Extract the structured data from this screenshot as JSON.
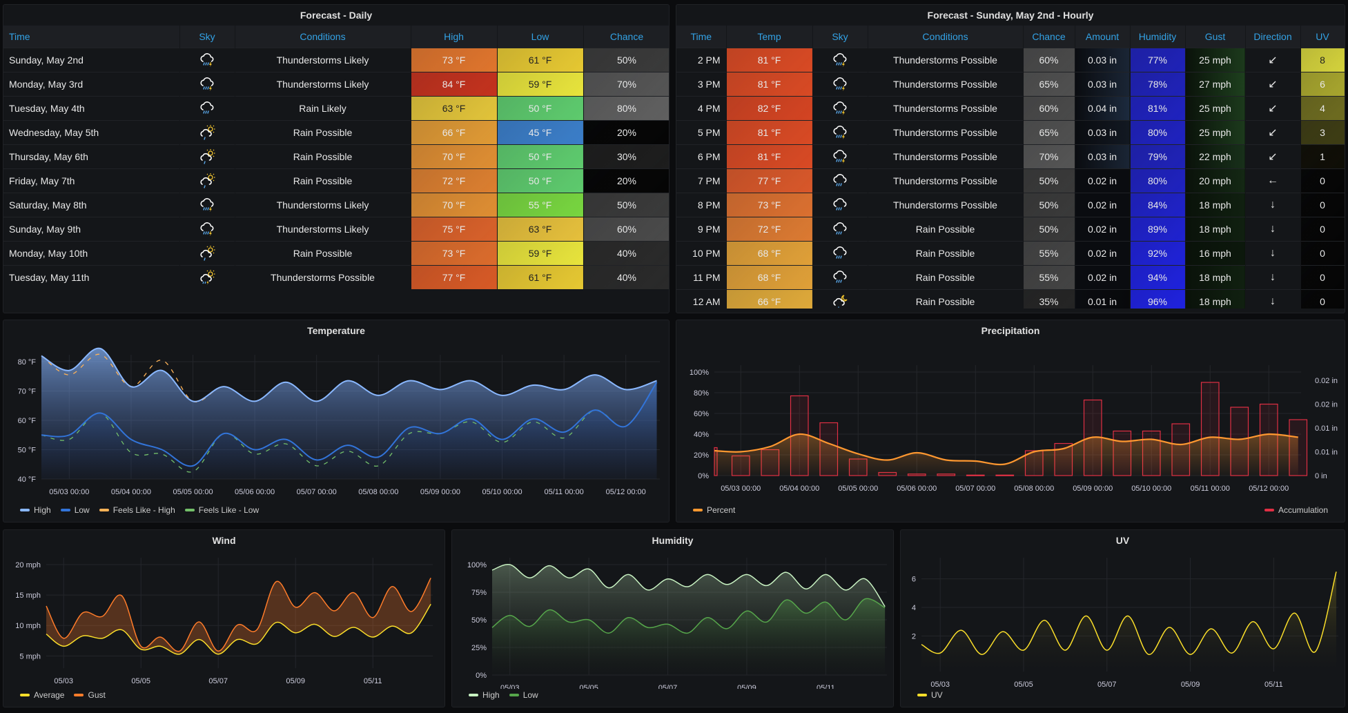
{
  "daily": {
    "title": "Forecast - Daily",
    "columns": [
      "Time",
      "Sky",
      "Conditions",
      "High",
      "Low",
      "Chance"
    ],
    "rows": [
      {
        "time": "Sunday, May 2nd",
        "sky": "thunderstorm-icon",
        "conditions": "Thunderstorms Likely",
        "high": "73 °F",
        "low": "61 °F",
        "chance": "50%",
        "high_color": "#e0752d",
        "low_color": "#e6c832",
        "chance_color": "#3a3a3a"
      },
      {
        "time": "Monday, May 3rd",
        "sky": "thunderstorm-icon",
        "conditions": "Thunderstorms Likely",
        "high": "84 °F",
        "low": "59 °F",
        "chance": "70%",
        "high_color": "#c4321e",
        "low_color": "#e8e43c",
        "chance_color": "#555555"
      },
      {
        "time": "Tuesday, May 4th",
        "sky": "rain-icon",
        "conditions": "Rain Likely",
        "high": "63 °F",
        "low": "50 °F",
        "chance": "80%",
        "high_color": "#e2c43a",
        "low_color": "#5ecb6e",
        "chance_color": "#606060"
      },
      {
        "time": "Wednesday, May 5th",
        "sky": "partly-sunny-rain-icon",
        "conditions": "Rain Possible",
        "high": "66 °F",
        "low": "45 °F",
        "chance": "20%",
        "high_color": "#e09a35",
        "low_color": "#3b7ec9",
        "chance_color": "#050505"
      },
      {
        "time": "Thursday, May 6th",
        "sky": "partly-sunny-rain-icon",
        "conditions": "Rain Possible",
        "high": "70 °F",
        "low": "50 °F",
        "chance": "30%",
        "high_color": "#df8e33",
        "low_color": "#5ecb6e",
        "chance_color": "#1d1d1d"
      },
      {
        "time": "Friday, May 7th",
        "sky": "partly-sunny-rain-icon",
        "conditions": "Rain Possible",
        "high": "72 °F",
        "low": "50 °F",
        "chance": "20%",
        "high_color": "#dc7f30",
        "low_color": "#5ecb6e",
        "chance_color": "#050505"
      },
      {
        "time": "Saturday, May 8th",
        "sky": "thunderstorm-icon",
        "conditions": "Thunderstorms Likely",
        "high": "70 °F",
        "low": "55 °F",
        "chance": "50%",
        "high_color": "#df8e33",
        "low_color": "#78d640",
        "chance_color": "#3a3a3a"
      },
      {
        "time": "Sunday, May 9th",
        "sky": "thunderstorm-icon",
        "conditions": "Thunderstorms Likely",
        "high": "75 °F",
        "low": "63 °F",
        "chance": "60%",
        "high_color": "#d9612a",
        "low_color": "#e6c03c",
        "chance_color": "#4a4a4a"
      },
      {
        "time": "Monday, May 10th",
        "sky": "partly-sunny-rain-icon",
        "conditions": "Rain Possible",
        "high": "73 °F",
        "low": "59 °F",
        "chance": "40%",
        "high_color": "#dc6c2c",
        "low_color": "#e8e43c",
        "chance_color": "#2a2a2a"
      },
      {
        "time": "Tuesday, May 11th",
        "sky": "partly-sunny-thunder-icon",
        "conditions": "Thunderstorms Possible",
        "high": "77 °F",
        "low": "61 °F",
        "chance": "40%",
        "high_color": "#d85a26",
        "low_color": "#e6c832",
        "chance_color": "#2a2a2a"
      }
    ]
  },
  "hourly": {
    "title": "Forecast - Sunday, May 2nd - Hourly",
    "columns": [
      "Time",
      "Temp",
      "Sky",
      "Conditions",
      "Chance",
      "Amount",
      "Humidity",
      "Gust",
      "Direction",
      "UV"
    ],
    "rows": [
      {
        "time": "2 PM",
        "temp": "81 °F",
        "sky": "thunderstorm-icon",
        "conditions": "Thunderstorms Possible",
        "chance": "60%",
        "amount": "0.03 in",
        "humidity": "77%",
        "gust": "25 mph",
        "direction": "↙",
        "uv": "8",
        "temp_color": "#d94a24",
        "chance_color": "#4a4a4a",
        "amount_color": "#1a2535",
        "humidity_color": "#1f22b8",
        "gust_color": "#1c3a1c",
        "uv_color": "#d4d23c"
      },
      {
        "time": "3 PM",
        "temp": "81 °F",
        "sky": "thunderstorm-icon",
        "conditions": "Thunderstorms Possible",
        "chance": "65%",
        "amount": "0.03 in",
        "humidity": "78%",
        "gust": "27 mph",
        "direction": "↙",
        "uv": "6",
        "temp_color": "#d94a24",
        "chance_color": "#505050",
        "amount_color": "#1a2535",
        "humidity_color": "#1f22b8",
        "gust_color": "#1e401e",
        "uv_color": "#a8a62e"
      },
      {
        "time": "4 PM",
        "temp": "82 °F",
        "sky": "thunderstorm-icon",
        "conditions": "Thunderstorms Possible",
        "chance": "60%",
        "amount": "0.04 in",
        "humidity": "81%",
        "gust": "25 mph",
        "direction": "↙",
        "uv": "4",
        "temp_color": "#d44422",
        "chance_color": "#4a4a4a",
        "amount_color": "#1c2a3e",
        "humidity_color": "#1f22c0",
        "gust_color": "#1c3a1c",
        "uv_color": "#6e6c20"
      },
      {
        "time": "5 PM",
        "temp": "81 °F",
        "sky": "thunderstorm-icon",
        "conditions": "Thunderstorms Possible",
        "chance": "65%",
        "amount": "0.03 in",
        "humidity": "80%",
        "gust": "25 mph",
        "direction": "↙",
        "uv": "3",
        "temp_color": "#d94a24",
        "chance_color": "#505050",
        "amount_color": "#121822",
        "humidity_color": "#1f22c0",
        "gust_color": "#1c3a1c",
        "uv_color": "#3e3d14"
      },
      {
        "time": "6 PM",
        "temp": "81 °F",
        "sky": "thunderstorm-icon",
        "conditions": "Thunderstorms Possible",
        "chance": "70%",
        "amount": "0.03 in",
        "humidity": "79%",
        "gust": "22 mph",
        "direction": "↙",
        "uv": "1",
        "temp_color": "#d94a24",
        "chance_color": "#555555",
        "amount_color": "#1a2535",
        "humidity_color": "#1f22b8",
        "gust_color": "#18301a",
        "uv_color": "#0f0e06"
      },
      {
        "time": "7 PM",
        "temp": "77 °F",
        "sky": "rain-icon",
        "conditions": "Thunderstorms Possible",
        "chance": "50%",
        "amount": "0.02 in",
        "humidity": "80%",
        "gust": "20 mph",
        "direction": "←",
        "uv": "0",
        "temp_color": "#d9582a",
        "chance_color": "#3a3a3a",
        "amount_color": "#0a0c10",
        "humidity_color": "#1f22c0",
        "gust_color": "#142814",
        "uv_color": "#050505"
      },
      {
        "time": "8 PM",
        "temp": "73 °F",
        "sky": "rain-icon",
        "conditions": "Thunderstorms Possible",
        "chance": "50%",
        "amount": "0.02 in",
        "humidity": "84%",
        "gust": "18 mph",
        "direction": "↓",
        "uv": "0",
        "temp_color": "#db7030",
        "chance_color": "#3a3a3a",
        "amount_color": "#0a0c10",
        "humidity_color": "#1f22c8",
        "gust_color": "#102010",
        "uv_color": "#050505"
      },
      {
        "time": "9 PM",
        "temp": "72 °F",
        "sky": "rain-icon",
        "conditions": "Rain Possible",
        "chance": "50%",
        "amount": "0.02 in",
        "humidity": "89%",
        "gust": "18 mph",
        "direction": "↓",
        "uv": "0",
        "temp_color": "#dc7a32",
        "chance_color": "#3a3a3a",
        "amount_color": "#0a0c10",
        "humidity_color": "#1f22d0",
        "gust_color": "#102010",
        "uv_color": "#050505"
      },
      {
        "time": "10 PM",
        "temp": "68 °F",
        "sky": "rain-icon",
        "conditions": "Rain Possible",
        "chance": "55%",
        "amount": "0.02 in",
        "humidity": "92%",
        "gust": "16 mph",
        "direction": "↓",
        "uv": "0",
        "temp_color": "#e0a038",
        "chance_color": "#444444",
        "amount_color": "#0a0c10",
        "humidity_color": "#1f22d8",
        "gust_color": "#0c180c",
        "uv_color": "#050505"
      },
      {
        "time": "11 PM",
        "temp": "68 °F",
        "sky": "rain-icon",
        "conditions": "Rain Possible",
        "chance": "55%",
        "amount": "0.02 in",
        "humidity": "94%",
        "gust": "18 mph",
        "direction": "↓",
        "uv": "0",
        "temp_color": "#e0a038",
        "chance_color": "#444444",
        "amount_color": "#0a0c10",
        "humidity_color": "#1f22dc",
        "gust_color": "#102010",
        "uv_color": "#050505"
      },
      {
        "time": "12 AM",
        "temp": "66 °F",
        "sky": "partly-cloudy-night-icon",
        "conditions": "Rain Possible",
        "chance": "35%",
        "amount": "0.01 in",
        "humidity": "96%",
        "gust": "18 mph",
        "direction": "↓",
        "uv": "0",
        "temp_color": "#e0aa3a",
        "chance_color": "#252525",
        "amount_color": "#08090b",
        "humidity_color": "#1f22e0",
        "gust_color": "#102010",
        "uv_color": "#050505"
      }
    ]
  },
  "chart_data": [
    {
      "id": "temperature",
      "type": "area",
      "title": "Temperature",
      "xlabel": "",
      "ylabel": "",
      "x_ticks": [
        "05/03 00:00",
        "05/04 00:00",
        "05/05 00:00",
        "05/06 00:00",
        "05/07 00:00",
        "05/08 00:00",
        "05/09 00:00",
        "05/10 00:00",
        "05/11 00:00",
        "05/12 00:00"
      ],
      "y_ticks": [
        "40 °F",
        "50 °F",
        "60 °F",
        "70 °F",
        "80 °F"
      ],
      "ylim": [
        40,
        80
      ],
      "xlim_days": [
        -0.45,
        9.55
      ],
      "x_days": [
        -0.45,
        0,
        0.5,
        1,
        1.5,
        2,
        2.5,
        3,
        3.5,
        4,
        4.5,
        5,
        5.5,
        6,
        6.5,
        7,
        7.5,
        8,
        8.5,
        9,
        9.5
      ],
      "series": [
        {
          "name": "High",
          "color": "#8ab8ff",
          "fill": true,
          "values": [
            82,
            77,
            84.5,
            71.5,
            77,
            66.5,
            71.5,
            66.5,
            73,
            66.5,
            73.5,
            68.5,
            73.5,
            70.5,
            73.5,
            68.5,
            72,
            70.5,
            75.5,
            70.5,
            73.5
          ]
        },
        {
          "name": "Low",
          "color": "#3274d9",
          "fill": true,
          "values": [
            55,
            55,
            62.5,
            53.5,
            50,
            44.5,
            55.5,
            50,
            53.5,
            46.5,
            51.5,
            47.5,
            57.5,
            55.5,
            60.5,
            53.5,
            60.5,
            56,
            63.5,
            58,
            73
          ]
        },
        {
          "name": "Feels Like - High",
          "color": "#ffb357",
          "dashed": true,
          "values": [
            82,
            75.5,
            82.5,
            71.5,
            80.5,
            66.5,
            71.5,
            66.5,
            73,
            66.5,
            73.5,
            68.5,
            73.5,
            70.5,
            73.5,
            68.5,
            72,
            70.5,
            75.5,
            70.5,
            73.5
          ]
        },
        {
          "name": "Feels Like - Low",
          "color": "#73bf69",
          "dashed": true,
          "values": [
            55,
            53.5,
            62.5,
            49,
            48.5,
            42.5,
            55.5,
            48.5,
            52,
            44.5,
            49.5,
            44.5,
            55.5,
            55.5,
            59.5,
            52.5,
            59.5,
            54,
            63.5,
            58,
            73
          ]
        }
      ],
      "legend": "bottom-left"
    },
    {
      "id": "precipitation",
      "type": "bar",
      "title": "Precipitation",
      "x_ticks": [
        "05/03 00:00",
        "05/04 00:00",
        "05/05 00:00",
        "05/06 00:00",
        "05/07 00:00",
        "05/08 00:00",
        "05/09 00:00",
        "05/10 00:00",
        "05/11 00:00",
        "05/12 00:00"
      ],
      "y_ticks_left": [
        "0%",
        "20%",
        "40%",
        "60%",
        "80%",
        "100%"
      ],
      "y_ticks_right": [
        "0 in",
        "0.01 in",
        "0.01 in",
        "0.02 in",
        "0.02 in"
      ],
      "ylim": [
        0,
        100
      ],
      "xlim_days": [
        -0.45,
        9.55
      ],
      "series": [
        {
          "name": "Percent",
          "type": "line",
          "color": "#ff9830",
          "axis": "left",
          "x_days": [
            -0.45,
            0,
            0.5,
            1,
            1.5,
            2,
            2.5,
            3,
            3.5,
            4,
            4.5,
            5,
            5.5,
            6,
            6.5,
            7,
            7.5,
            8,
            8.5,
            9,
            9.5
          ],
          "values": [
            24,
            23,
            28,
            40,
            31,
            21,
            15,
            22,
            15,
            14,
            11,
            23,
            26,
            37,
            33,
            35,
            30,
            37,
            35,
            40,
            37
          ]
        },
        {
          "name": "Accumulation",
          "type": "bar",
          "color": "#e02f44",
          "axis": "right",
          "x_days": [
            -0.4,
            0,
            0.5,
            1,
            1.5,
            2,
            2.5,
            3,
            3.5,
            4,
            4.5,
            5,
            5.5,
            6,
            6.5,
            7,
            7.5,
            8,
            8.5,
            9,
            9.5
          ],
          "values_pct_scale": [
            27,
            19,
            25,
            77,
            51,
            16,
            3,
            1.5,
            1.5,
            0.5,
            0.5,
            24,
            31,
            73,
            43,
            43,
            50,
            90,
            66,
            69,
            54
          ]
        }
      ],
      "legend": "bottom"
    },
    {
      "id": "wind",
      "type": "area",
      "title": "Wind",
      "x_ticks": [
        "05/03",
        "05/05",
        "05/07",
        "05/09",
        "05/11"
      ],
      "y_ticks": [
        "5 mph",
        "10 mph",
        "15 mph",
        "20 mph"
      ],
      "ylim": [
        3,
        20
      ],
      "xlim_days": [
        -0.45,
        9.55
      ],
      "x_days": [
        -0.45,
        0,
        0.5,
        1,
        1.5,
        2,
        2.5,
        3,
        3.5,
        4,
        4.5,
        5,
        5.5,
        6,
        6.5,
        7,
        7.5,
        8,
        8.5,
        9,
        9.5
      ],
      "series": [
        {
          "name": "Average",
          "color": "#fade2a",
          "values": [
            8.6,
            6.6,
            8.3,
            7.9,
            9.3,
            6.1,
            6.6,
            5.3,
            7.7,
            5.3,
            7.7,
            7.0,
            10.5,
            8.8,
            10.2,
            8.2,
            9.7,
            8.1,
            9.9,
            8.8,
            13.5
          ]
        },
        {
          "name": "Gust",
          "color": "#ff7c2a",
          "fill": true,
          "values": [
            13.2,
            7.9,
            12.1,
            11.5,
            14.9,
            6.6,
            8.1,
            5.8,
            10.6,
            5.8,
            10.1,
            9.3,
            17.2,
            13.0,
            15.4,
            12.4,
            15.4,
            11.3,
            16.4,
            12.3,
            17.8
          ]
        }
      ],
      "legend": "bottom-left"
    },
    {
      "id": "humidity",
      "type": "area",
      "title": "Humidity",
      "x_ticks": [
        "05/03",
        "05/05",
        "05/07",
        "05/09",
        "05/11"
      ],
      "y_ticks": [
        "0%",
        "25%",
        "50%",
        "75%",
        "100%"
      ],
      "ylim": [
        0,
        100
      ],
      "xlim_days": [
        -0.45,
        9.55
      ],
      "x_days": [
        -0.45,
        0,
        0.5,
        1,
        1.5,
        2,
        2.5,
        3,
        3.5,
        4,
        4.5,
        5,
        5.5,
        6,
        6.5,
        7,
        7.5,
        8,
        8.5,
        9,
        9.5
      ],
      "series": [
        {
          "name": "High",
          "color": "#c8f2c2",
          "fill": true,
          "values": [
            95,
            100,
            88,
            99,
            88,
            96,
            79,
            91,
            77,
            87,
            80,
            91,
            82,
            91,
            81,
            93,
            78,
            91,
            77,
            87,
            62
          ]
        },
        {
          "name": "Low",
          "color": "#56a64b",
          "fill": true,
          "values": [
            43,
            54,
            44,
            59,
            48,
            50,
            38,
            52,
            43,
            46,
            38,
            52,
            42,
            58,
            48,
            68,
            56,
            66,
            50,
            69,
            61
          ]
        }
      ],
      "legend": "bottom-left"
    },
    {
      "id": "uv",
      "type": "area",
      "title": "UV",
      "x_ticks": [
        "05/03",
        "05/05",
        "05/07",
        "05/09",
        "05/11"
      ],
      "y_ticks": [
        "2",
        "4",
        "6"
      ],
      "ylim": [
        -0.5,
        7
      ],
      "xlim_days": [
        -0.45,
        9.55
      ],
      "x_days": [
        -0.45,
        0,
        0.5,
        1,
        1.5,
        2,
        2.5,
        3,
        3.5,
        4,
        4.5,
        5,
        5.5,
        6,
        6.5,
        7,
        7.5,
        8,
        8.5,
        9,
        9.5
      ],
      "series": [
        {
          "name": "UV",
          "color": "#fade2a",
          "fill": true,
          "values": [
            1.4,
            0.8,
            2.4,
            0.7,
            2.3,
            1.0,
            3.1,
            1.0,
            3.4,
            1.0,
            3.4,
            0.7,
            2.6,
            0.7,
            2.5,
            0.8,
            3.0,
            1.1,
            3.6,
            0.9,
            6.5
          ]
        }
      ],
      "legend": "bottom-left"
    }
  ]
}
